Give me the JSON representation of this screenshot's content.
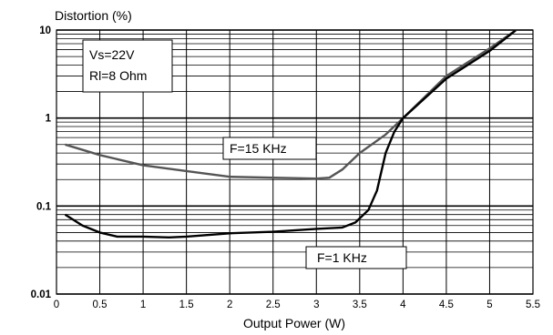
{
  "chart_data": {
    "type": "line",
    "title": "",
    "xlabel": "Output Power (W)",
    "ylabel": "Distortion (%)",
    "xlim": [
      0,
      5.5
    ],
    "ylim": [
      0.01,
      10
    ],
    "yscale": "log",
    "grid": true,
    "x_ticks": [
      "0",
      "0.5",
      "1",
      "1.5",
      "2",
      "2.5",
      "3",
      "3.5",
      "4",
      "4.5",
      "5",
      "5.5"
    ],
    "y_ticks": [
      "0.01",
      "0.1",
      "1",
      "10"
    ],
    "conditions": [
      "Vs=22V",
      "Rl=8 Ohm"
    ],
    "series": [
      {
        "name": "F=15 KHz",
        "color": "#555555",
        "x": [
          0.1,
          0.5,
          1.0,
          1.5,
          2.0,
          2.5,
          3.0,
          3.15,
          3.3,
          3.5,
          3.8,
          4.0,
          4.5,
          5.0,
          5.3
        ],
        "y": [
          0.5,
          0.38,
          0.29,
          0.25,
          0.215,
          0.21,
          0.205,
          0.21,
          0.26,
          0.4,
          0.65,
          1.0,
          3.0,
          6.2,
          9.9
        ]
      },
      {
        "name": "F=1 KHz",
        "color": "#000000",
        "x": [
          0.1,
          0.3,
          0.5,
          0.7,
          1.0,
          1.3,
          1.5,
          2.0,
          2.5,
          3.0,
          3.3,
          3.45,
          3.6,
          3.7,
          3.8,
          3.9,
          4.0,
          4.5,
          5.0,
          5.3
        ],
        "y": [
          0.08,
          0.06,
          0.05,
          0.045,
          0.045,
          0.044,
          0.045,
          0.049,
          0.051,
          0.055,
          0.057,
          0.065,
          0.09,
          0.15,
          0.4,
          0.7,
          1.0,
          2.8,
          5.8,
          9.9
        ]
      }
    ]
  }
}
